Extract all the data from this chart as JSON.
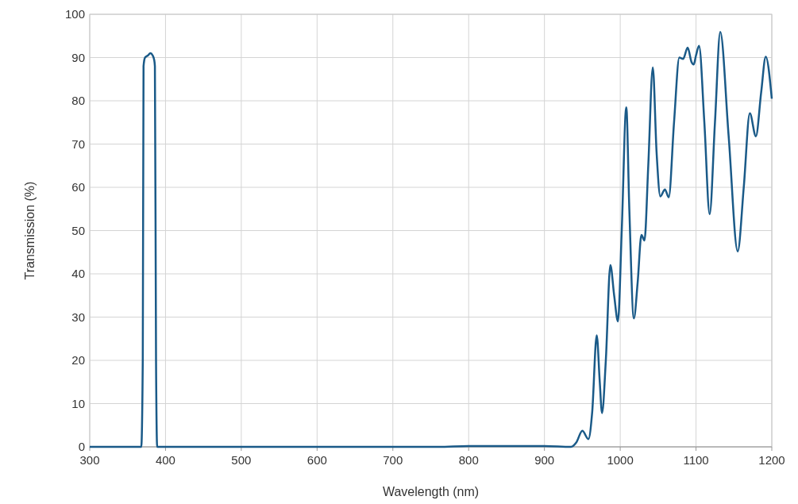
{
  "chart_data": {
    "type": "line",
    "xlabel": "Wavelength (nm)",
    "ylabel": "Transmission (%)",
    "xlim": [
      300,
      1200
    ],
    "xticks": [
      300,
      400,
      500,
      600,
      700,
      800,
      900,
      1000,
      1100,
      1200
    ],
    "ylim": [
      0,
      100
    ],
    "yticks": [
      0,
      10,
      20,
      30,
      40,
      50,
      60,
      70,
      80,
      90,
      100
    ],
    "grid": true,
    "line_style": "solid",
    "marker": "none",
    "series": [
      {
        "color": "#1a5a88",
        "x": [
          300,
          368,
          370,
          371,
          373,
          377,
          380,
          383,
          385,
          386,
          387.5,
          389,
          760,
          800,
          900,
          935,
          942,
          950,
          958,
          963,
          969,
          973,
          976,
          981,
          987,
          992,
          997,
          1002,
          1008,
          1012,
          1018,
          1023,
          1028,
          1032,
          1037,
          1043,
          1048,
          1053,
          1059,
          1064,
          1071,
          1078,
          1083,
          1089,
          1094,
          1097,
          1100,
          1104,
          1111,
          1118,
          1125,
          1132,
          1143,
          1155,
          1163,
          1171,
          1179,
          1186,
          1192,
          1200
        ],
        "values": [
          0,
          0,
          20,
          88,
          90,
          90.5,
          91,
          90.5,
          89.5,
          88,
          20,
          0,
          0,
          0.2,
          0.2,
          0,
          1,
          3.7,
          1.8,
          8,
          25.8,
          15,
          7.8,
          20,
          42,
          35,
          29,
          50,
          78.5,
          55,
          29.7,
          38,
          49,
          47.7,
          65,
          87.7,
          68,
          57.9,
          59.5,
          57.7,
          75,
          90,
          89.7,
          92.3,
          89,
          88.4,
          90.5,
          92.7,
          75,
          53.8,
          75,
          95.9,
          72,
          45.2,
          60,
          77.1,
          71.8,
          82,
          90.2,
          80.5
        ]
      }
    ]
  }
}
